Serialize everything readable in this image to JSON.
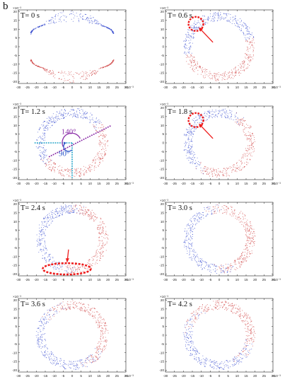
{
  "figure_label": "b",
  "colors": {
    "blue": "#3b4fd0",
    "red": "#d04444",
    "annot_red": "#ee1c1c",
    "purple": "#8b2fa8",
    "cyan": "#1aa0c6"
  },
  "chart_data": {
    "type": "scatter",
    "xlim": [
      -30,
      30
    ],
    "ylim": [
      -21,
      21
    ],
    "xticks": [
      "-30",
      "-25",
      "-20",
      "-15",
      "-10",
      "-5",
      "0",
      "5",
      "10",
      "15",
      "20",
      "25",
      "30"
    ],
    "yticks": [
      "20",
      "15",
      "10",
      "5",
      "0",
      "-5",
      "-10",
      "-15",
      "-20"
    ],
    "scale_label": "×10⁻³",
    "panels": [
      {
        "label": "T= 0 s",
        "state": "initial"
      },
      {
        "label": "T= 0.6 s",
        "state": "ring",
        "rotation": 15,
        "annotation": "circle-arrow"
      },
      {
        "label": "T= 1.2 s",
        "state": "ring",
        "rotation": 35,
        "annotation": "angles",
        "angle1": "140°",
        "angle2": "90°"
      },
      {
        "label": "T= 1.8 s",
        "state": "ring",
        "rotation": 55,
        "annotation": "circle-arrow"
      },
      {
        "label": "T= 2.4 s",
        "state": "ring",
        "rotation": 80,
        "annotation": "ellipse-arrow"
      },
      {
        "label": "T= 3.0 s",
        "state": "ring",
        "rotation": 100
      },
      {
        "label": "T= 3.6 s",
        "state": "ring",
        "rotation": 125
      },
      {
        "label": "T= 4.2 s",
        "state": "ring",
        "rotation": 150
      }
    ]
  }
}
